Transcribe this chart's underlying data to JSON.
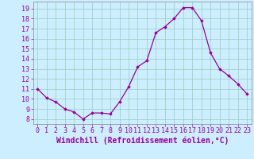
{
  "hours": [
    0,
    1,
    2,
    3,
    4,
    5,
    6,
    7,
    8,
    9,
    10,
    11,
    12,
    13,
    14,
    15,
    16,
    17,
    18,
    19,
    20,
    21,
    22,
    23
  ],
  "windchill": [
    11.0,
    10.1,
    9.7,
    9.0,
    8.7,
    8.0,
    8.6,
    8.6,
    8.5,
    9.7,
    11.2,
    13.2,
    13.8,
    16.6,
    17.2,
    18.0,
    19.1,
    19.1,
    17.8,
    14.6,
    13.0,
    12.3,
    11.5,
    10.5
  ],
  "line_color": "#990099",
  "marker": "D",
  "markersize": 1.8,
  "bg_color": "#cceeff",
  "grid_color": "#99ccbb",
  "xlabel": "Windchill (Refroidissement éolien,°C)",
  "xlabel_color": "#990099",
  "xlabel_fontsize": 7,
  "tick_color": "#990099",
  "tick_fontsize": 6,
  "ylim": [
    7.5,
    19.7
  ],
  "yticks": [
    8,
    9,
    10,
    11,
    12,
    13,
    14,
    15,
    16,
    17,
    18,
    19
  ],
  "xlim": [
    -0.5,
    23.5
  ],
  "linewidth": 0.9
}
